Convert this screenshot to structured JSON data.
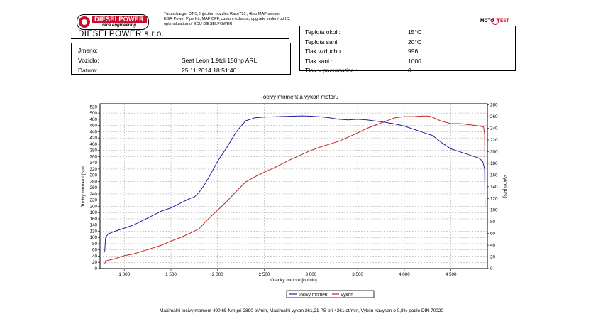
{
  "header": {
    "logo_title": "DIESELPOWER",
    "logo_subtitle": "race engineering",
    "company": "DIESELPOWER s.r.o.",
    "description": [
      "Turbocharger DT-5, Injection nozzles Race793 , 4bar MAP sensor,",
      "EGR Power Pipe Kit, MAF OFF, custom exhaust, upgrade vedení od IC,",
      "optimalization of ECU DIESELPOWER"
    ],
    "motortest_logo_left": "MOTO",
    "motortest_logo_right": "TEST"
  },
  "vehicle_info": [
    {
      "label": "Jmeno:",
      "value": ""
    },
    {
      "label": "Vozidlo:",
      "value": "Seat Leon 1.9tdi 150hp ARL"
    },
    {
      "label": "Datum:",
      "value": "25.11.2014 18:51:40"
    }
  ],
  "conditions": [
    {
      "label": "Teplota okoli:",
      "value": "15°C"
    },
    {
      "label": "Teplota sani:",
      "value": "20°C"
    },
    {
      "label": "Tlak vzduchu :",
      "value": "996"
    },
    {
      "label": "Tlak sani :",
      "value": "1000"
    },
    {
      "label": "Tlak v pneumatice :",
      "value": "0"
    }
  ],
  "summary": "Maximalni tocivy moment 490,65 Nm pri 2890 ot/min,  Maximalni vykon 261,21 PS pri 4261 ot/min,  Vykon navysen o 0,8% podle DIN 70020",
  "chart_data": {
    "type": "line",
    "title": "Tocivy moment a vykon motoru",
    "xlabel": "Otacky motoru [ot/min]",
    "ylabel": "Tocivy moment [Nm]",
    "y2label": "Vykon [PS]",
    "xlim": [
      740,
      4890
    ],
    "ylim": [
      0,
      530
    ],
    "y2lim": [
      0,
      282
    ],
    "x_ticks": [
      1000,
      1500,
      2000,
      2500,
      3000,
      3500,
      4000,
      4500
    ],
    "x_tick_labels": [
      "1 000",
      "1 500",
      "2 000",
      "2 500",
      "3 000",
      "3 500",
      "4 000",
      "4 500"
    ],
    "y_ticks": [
      0,
      20,
      40,
      60,
      80,
      100,
      120,
      140,
      160,
      180,
      200,
      220,
      240,
      260,
      280,
      300,
      320,
      340,
      360,
      380,
      400,
      420,
      440,
      460,
      480,
      500,
      520
    ],
    "y2_ticks": [
      0,
      20,
      40,
      60,
      80,
      100,
      120,
      140,
      160,
      180,
      200,
      220,
      240,
      260,
      280
    ],
    "grid": true,
    "legend_position": "bottom-center",
    "series": [
      {
        "name": "Tocivy moment",
        "axis": "left",
        "color": "#1f1f9c",
        "points": [
          [
            790,
            55
          ],
          [
            800,
            100
          ],
          [
            830,
            112
          ],
          [
            900,
            120
          ],
          [
            1000,
            130
          ],
          [
            1100,
            140
          ],
          [
            1200,
            155
          ],
          [
            1300,
            170
          ],
          [
            1400,
            185
          ],
          [
            1500,
            195
          ],
          [
            1600,
            210
          ],
          [
            1700,
            225
          ],
          [
            1750,
            230
          ],
          [
            1800,
            245
          ],
          [
            1850,
            265
          ],
          [
            1900,
            290
          ],
          [
            2000,
            345
          ],
          [
            2100,
            390
          ],
          [
            2200,
            440
          ],
          [
            2300,
            475
          ],
          [
            2400,
            485
          ],
          [
            2500,
            487
          ],
          [
            2600,
            488
          ],
          [
            2700,
            489
          ],
          [
            2800,
            490
          ],
          [
            2900,
            491
          ],
          [
            3000,
            490
          ],
          [
            3100,
            488
          ],
          [
            3200,
            485
          ],
          [
            3300,
            480
          ],
          [
            3400,
            478
          ],
          [
            3500,
            480
          ],
          [
            3600,
            478
          ],
          [
            3700,
            474
          ],
          [
            3800,
            470
          ],
          [
            3900,
            465
          ],
          [
            4000,
            458
          ],
          [
            4100,
            448
          ],
          [
            4200,
            438
          ],
          [
            4300,
            428
          ],
          [
            4400,
            405
          ],
          [
            4500,
            385
          ],
          [
            4600,
            375
          ],
          [
            4700,
            365
          ],
          [
            4800,
            355
          ],
          [
            4840,
            345
          ],
          [
            4860,
            320
          ],
          [
            4865,
            200
          ]
        ]
      },
      {
        "name": "Vykon",
        "axis": "right",
        "color": "#c22323",
        "points": [
          [
            790,
            8
          ],
          [
            800,
            13
          ],
          [
            900,
            17
          ],
          [
            1000,
            22
          ],
          [
            1100,
            25
          ],
          [
            1200,
            30
          ],
          [
            1300,
            35
          ],
          [
            1400,
            40
          ],
          [
            1500,
            47
          ],
          [
            1600,
            53
          ],
          [
            1700,
            60
          ],
          [
            1800,
            68
          ],
          [
            1900,
            85
          ],
          [
            2000,
            100
          ],
          [
            2100,
            115
          ],
          [
            2200,
            132
          ],
          [
            2300,
            148
          ],
          [
            2400,
            157
          ],
          [
            2500,
            165
          ],
          [
            2600,
            172
          ],
          [
            2700,
            180
          ],
          [
            2800,
            188
          ],
          [
            2900,
            195
          ],
          [
            3000,
            202
          ],
          [
            3100,
            208
          ],
          [
            3200,
            213
          ],
          [
            3300,
            218
          ],
          [
            3400,
            225
          ],
          [
            3500,
            232
          ],
          [
            3600,
            240
          ],
          [
            3700,
            246
          ],
          [
            3800,
            252
          ],
          [
            3900,
            258
          ],
          [
            4000,
            260
          ],
          [
            4100,
            260
          ],
          [
            4200,
            261
          ],
          [
            4261,
            261
          ],
          [
            4300,
            259
          ],
          [
            4400,
            252
          ],
          [
            4500,
            248
          ],
          [
            4600,
            248
          ],
          [
            4700,
            246
          ],
          [
            4800,
            244
          ],
          [
            4850,
            242
          ],
          [
            4860,
            230
          ],
          [
            4865,
            150
          ]
        ]
      }
    ]
  }
}
